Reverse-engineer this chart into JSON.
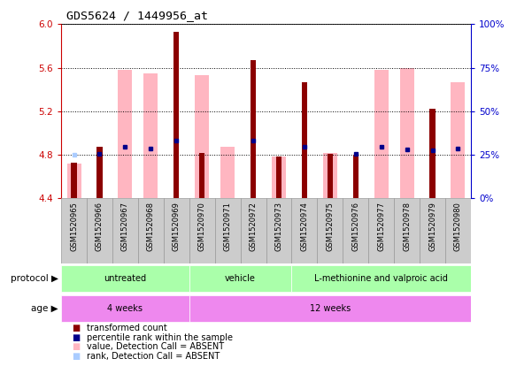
{
  "title": "GDS5624 / 1449956_at",
  "samples": [
    "GSM1520965",
    "GSM1520966",
    "GSM1520967",
    "GSM1520968",
    "GSM1520969",
    "GSM1520970",
    "GSM1520971",
    "GSM1520972",
    "GSM1520973",
    "GSM1520974",
    "GSM1520975",
    "GSM1520976",
    "GSM1520977",
    "GSM1520978",
    "GSM1520979",
    "GSM1520980"
  ],
  "red_bar_values": [
    4.73,
    4.87,
    null,
    null,
    5.93,
    4.82,
    null,
    5.67,
    4.78,
    5.47,
    4.81,
    4.8,
    null,
    null,
    5.22,
    null
  ],
  "pink_bar_values": [
    4.72,
    null,
    5.58,
    5.55,
    null,
    5.53,
    4.87,
    null,
    4.78,
    null,
    4.82,
    null,
    5.58,
    5.6,
    null,
    5.47
  ],
  "blue_marker_values": [
    null,
    4.81,
    4.87,
    4.86,
    4.93,
    null,
    null,
    4.93,
    null,
    4.87,
    null,
    4.81,
    4.87,
    4.85,
    4.84,
    4.86
  ],
  "light_blue_marker_values": [
    4.8,
    null,
    null,
    null,
    null,
    null,
    null,
    null,
    null,
    null,
    null,
    null,
    null,
    null,
    null,
    null
  ],
  "ylim": [
    4.4,
    6.0
  ],
  "yticks_left": [
    4.4,
    4.8,
    5.2,
    5.6,
    6.0
  ],
  "yticks_right_vals": [
    0,
    25,
    50,
    75,
    100
  ],
  "right_ylim": [
    0,
    100
  ],
  "protocol_groups": [
    {
      "label": "untreated",
      "start": 0,
      "end": 4,
      "color": "#aaffaa"
    },
    {
      "label": "vehicle",
      "start": 5,
      "end": 8,
      "color": "#aaffaa"
    },
    {
      "label": "L-methionine and valproic acid",
      "start": 9,
      "end": 15,
      "color": "#aaffaa"
    }
  ],
  "age_groups": [
    {
      "label": "4 weeks",
      "start": 0,
      "end": 4,
      "color": "#ee88ee"
    },
    {
      "label": "12 weeks",
      "start": 5,
      "end": 15,
      "color": "#ee88ee"
    }
  ],
  "dark_red": "#8B0000",
  "pink": "#FFB6C1",
  "blue": "#00008B",
  "light_blue": "#AACCFF",
  "left_tick_color": "#CC0000",
  "right_tick_color": "#0000CC",
  "cell_bg": "#cccccc",
  "cell_border": "#999999"
}
